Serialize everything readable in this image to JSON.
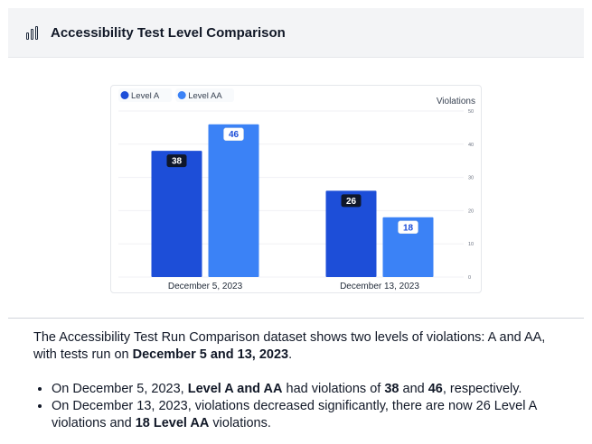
{
  "header": {
    "icon": "bar-chart-icon",
    "title": "Accessibility Test Level Comparison"
  },
  "chart_data": {
    "type": "bar",
    "categories": [
      "December 5, 2023",
      "December 13, 2023"
    ],
    "series": [
      {
        "name": "Level A",
        "values": [
          38,
          26
        ],
        "color": "#1d4ed8"
      },
      {
        "name": "Level AA",
        "values": [
          46,
          18
        ],
        "color": "#3b82f6"
      }
    ],
    "ylabel": "Violations",
    "ylim": [
      0,
      50
    ],
    "yticks": [
      0,
      10,
      20,
      30,
      40,
      50
    ],
    "legend_position": "top-left",
    "grid": true
  },
  "summary": {
    "intro_a": "The Accessibility Test Run Comparison dataset shows two levels of violations: A and AA, with tests run on ",
    "intro_b": "December 5 and 13, 2023",
    "intro_c": ".",
    "b1_a": "On December 5, 2023, ",
    "b1_b": "Level A and AA",
    "b1_c": " had violations of ",
    "b1_d": "38",
    "b1_e": " and ",
    "b1_f": "46",
    "b1_g": ", respectively.",
    "b2_a": "On December 13, 2023, violations decreased significantly, there are now 26 Level A violations and ",
    "b2_b": "18 Level AA",
    "b2_c": " violations."
  }
}
